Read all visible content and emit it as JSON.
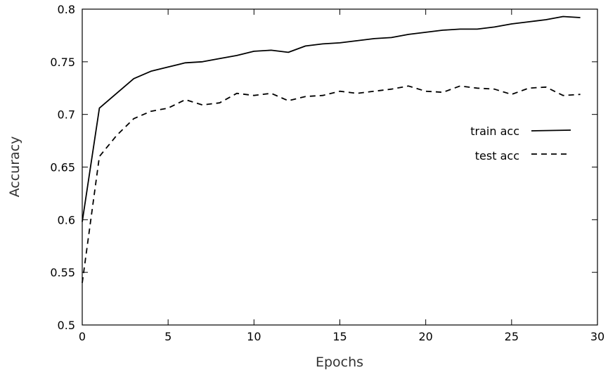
{
  "chart_data": {
    "type": "line",
    "title": "",
    "xlabel": "Epochs",
    "ylabel": "Accuracy",
    "xlim": [
      0,
      30
    ],
    "ylim": [
      0.5,
      0.8
    ],
    "x_ticks": [
      "0",
      "5",
      "10",
      "15",
      "20",
      "25",
      "30"
    ],
    "y_ticks": [
      "0.5",
      "0.55",
      "0.6",
      "0.65",
      "0.7",
      "0.75",
      "0.8"
    ],
    "x_tick_values": [
      0,
      5,
      10,
      15,
      20,
      25,
      30
    ],
    "y_tick_values": [
      0.5,
      0.55,
      0.6,
      0.65,
      0.7,
      0.75,
      0.8
    ],
    "grid": false,
    "legend_position": "right",
    "series": [
      {
        "name": "train acc",
        "style": "solid",
        "color": "#000000",
        "x": [
          0,
          1,
          2,
          3,
          4,
          5,
          6,
          7,
          8,
          9,
          10,
          11,
          12,
          13,
          14,
          15,
          16,
          17,
          18,
          19,
          20,
          21,
          22,
          23,
          24,
          25,
          26,
          27,
          28,
          29
        ],
        "y": [
          0.598,
          0.706,
          0.72,
          0.734,
          0.741,
          0.745,
          0.749,
          0.75,
          0.753,
          0.756,
          0.76,
          0.761,
          0.759,
          0.765,
          0.767,
          0.768,
          0.77,
          0.772,
          0.773,
          0.776,
          0.778,
          0.78,
          0.781,
          0.781,
          0.783,
          0.786,
          0.788,
          0.79,
          0.793,
          0.792
        ]
      },
      {
        "name": "test acc",
        "style": "dashed",
        "color": "#000000",
        "x": [
          0,
          0.5,
          1,
          2,
          3,
          4,
          5,
          6,
          7,
          8,
          9,
          10,
          11,
          12,
          13,
          14,
          15,
          16,
          17,
          18,
          19,
          20,
          21,
          22,
          23,
          24,
          25,
          26,
          27,
          28,
          29
        ],
        "y": [
          0.54,
          0.6,
          0.66,
          0.68,
          0.696,
          0.703,
          0.706,
          0.714,
          0.709,
          0.711,
          0.72,
          0.718,
          0.72,
          0.713,
          0.717,
          0.718,
          0.722,
          0.72,
          0.722,
          0.724,
          0.727,
          0.722,
          0.721,
          0.727,
          0.725,
          0.724,
          0.719,
          0.725,
          0.726,
          0.718,
          0.719
        ]
      }
    ]
  }
}
